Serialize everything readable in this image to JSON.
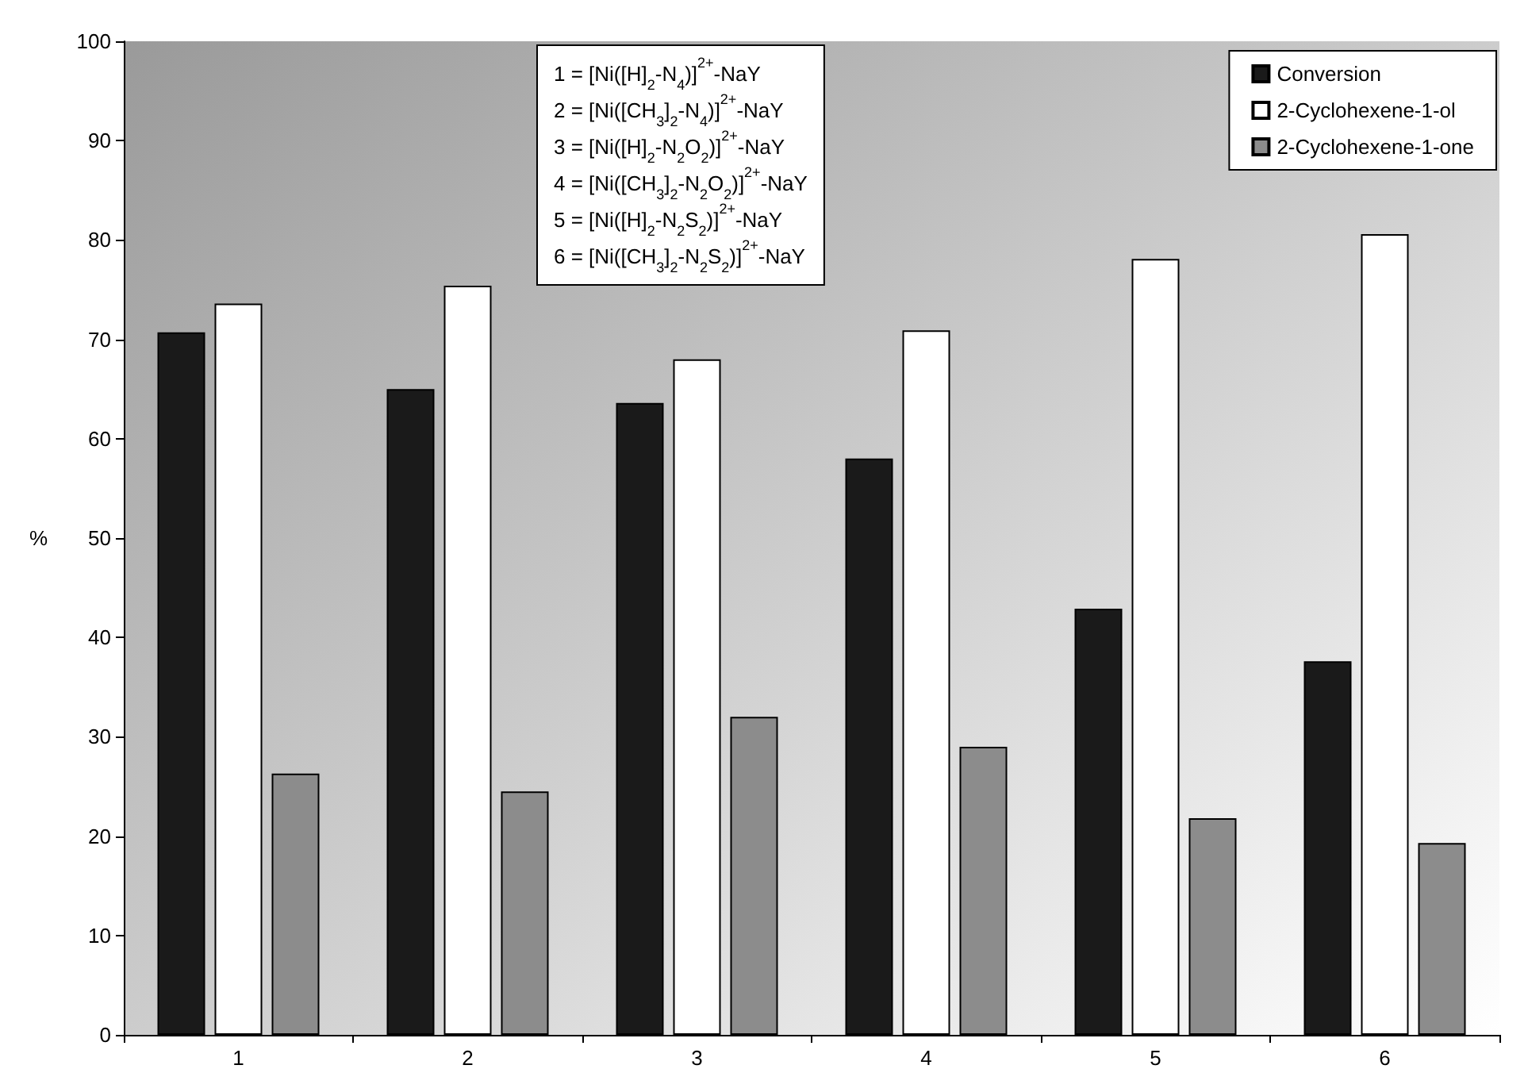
{
  "chart_data": {
    "type": "bar",
    "ylabel": "%",
    "categories": [
      "1",
      "2",
      "3",
      "4",
      "5",
      "6"
    ],
    "series": [
      {
        "name": "Conversion",
        "color": "#1a1a1a",
        "values": [
          70.7,
          65,
          63.6,
          58,
          42.9,
          37.6
        ]
      },
      {
        "name": "2-Cyclohexene-1-ol",
        "color": "#ffffff",
        "values": [
          73.6,
          75.4,
          68,
          70.9,
          78.1,
          80.6
        ]
      },
      {
        "name": "2-Cyclohexene-1-one",
        "color": "#8c8c8c",
        "values": [
          26.3,
          24.5,
          32,
          29,
          21.8,
          19.3
        ]
      }
    ],
    "ylim": [
      0,
      100
    ],
    "yticks": [
      0,
      10,
      20,
      30,
      40,
      50,
      60,
      70,
      80,
      90,
      100
    ],
    "grid": false,
    "legend": "top right",
    "annotations": [
      "1 = [Ni([H]$_{2}$-N$_{4}$)]$^{2+}$-NaY",
      "2 = [Ni([CH$_{3}$]$_{2}$-N$_{4}$)]$^{2+}$-NaY",
      "3 = [Ni([H]$_{2}$-N$_{2}$O$_{2}$)]$^{2+}$-NaY",
      "4 = [Ni([CH$_{3}$]$_{2}$-N$_{2}$O$_{2}$)]$^{2+}$-NaY",
      "5 = [Ni([H]$_{2}$-N$_{2}$S$_{2}$)]$^{2+}$-NaY",
      "6 = [Ni([CH$_{3}$]$_{2}$-N$_{2}$S$_{2}$)]$^{2+}$-NaY"
    ]
  }
}
